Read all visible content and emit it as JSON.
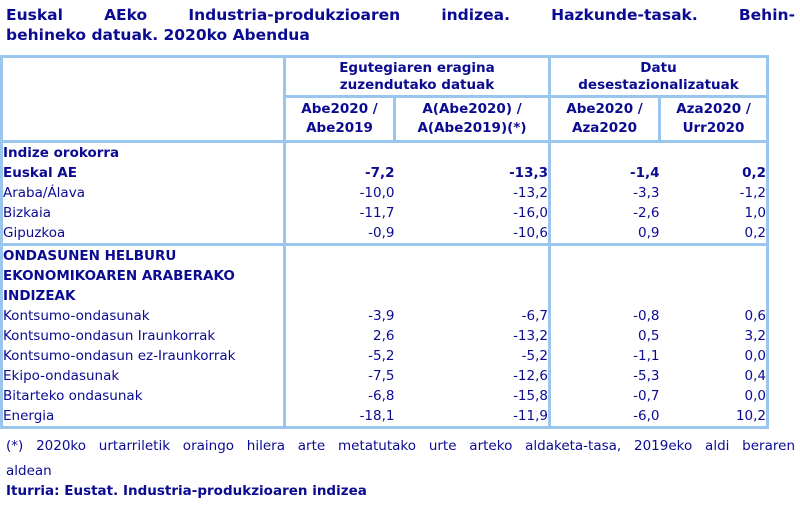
{
  "title": {
    "line1": "Euskal  AEko  Industria-produkzioaren  indizea.  Hazkunde-tasak.  Behin-",
    "line2": "behineko datuak. 2020ko Abendua"
  },
  "table": {
    "col_groups": [
      {
        "lines": [
          "Egutegiaren eragina",
          "zuzendutako datuak"
        ]
      },
      {
        "lines": [
          "Datu",
          "desestazionalizatuak"
        ]
      }
    ],
    "columns": [
      {
        "lines": [
          "Abe2020 /",
          "Abe2019"
        ]
      },
      {
        "lines": [
          "A(Abe2020) /",
          "A(Abe2019)(*)"
        ]
      },
      {
        "lines": [
          "Abe2020 /",
          "Aza2020"
        ]
      },
      {
        "lines": [
          "Aza2020 /",
          "Urr2020"
        ]
      }
    ],
    "rows": [
      {
        "label": "Indize orokorra",
        "bold": true,
        "values": [
          "",
          "",
          "",
          ""
        ]
      },
      {
        "label": "Euskal AE",
        "bold": true,
        "values": [
          "-7,2",
          "-13,3",
          "-1,4",
          "0,2"
        ]
      },
      {
        "label": "Araba/Álava",
        "bold": false,
        "values": [
          "-10,0",
          "-13,2",
          "-3,3",
          "-1,2"
        ]
      },
      {
        "label": "Bizkaia",
        "bold": false,
        "values": [
          "-11,7",
          "-16,0",
          "-2,6",
          "1,0"
        ]
      },
      {
        "label": "Gipuzkoa",
        "bold": false,
        "values": [
          "-0,9",
          "-10,6",
          "0,9",
          "0,2"
        ]
      },
      {
        "lines": [
          "ONDASUNEN HELBURU",
          "EKONOMIKOAREN ARABERAKO",
          "INDIZEAK"
        ],
        "bold": true,
        "values": [
          "",
          "",
          "",
          ""
        ]
      },
      {
        "label": "Kontsumo-ondasunak",
        "bold": false,
        "values": [
          "-3,9",
          "-6,7",
          "-0,8",
          "0,6"
        ]
      },
      {
        "label": "Kontsumo-ondasun Iraunkorrak",
        "bold": false,
        "values": [
          "2,6",
          "-13,2",
          "0,5",
          "3,2"
        ]
      },
      {
        "label": "Kontsumo-ondasun ez-Iraunkorrak",
        "bold": false,
        "values": [
          "-5,2",
          "-5,2",
          "-1,1",
          "0,0"
        ]
      },
      {
        "label": "Ekipo-ondasunak",
        "bold": false,
        "values": [
          "-7,5",
          "-12,6",
          "-5,3",
          "0,4"
        ]
      },
      {
        "label": "Bitarteko ondasunak",
        "bold": false,
        "values": [
          "-6,8",
          "-15,8",
          "-0,7",
          "0,0"
        ]
      },
      {
        "label": "Energia",
        "bold": false,
        "values": [
          "-18,1",
          "-11,9",
          "-6,0",
          "10,2"
        ]
      }
    ]
  },
  "footnote": {
    "line1": "(*) 2020ko urtarriletik oraingo hilera arte metatutako urte arteko aldaketa-tasa, 2019eko aldi beraren",
    "line2": "aldean"
  },
  "source": "Iturria: Eustat. Industria-produkzioaren indizea",
  "colors": {
    "text": "#0b0b92",
    "border": "#9ac6ee",
    "background": "#ffffff"
  }
}
